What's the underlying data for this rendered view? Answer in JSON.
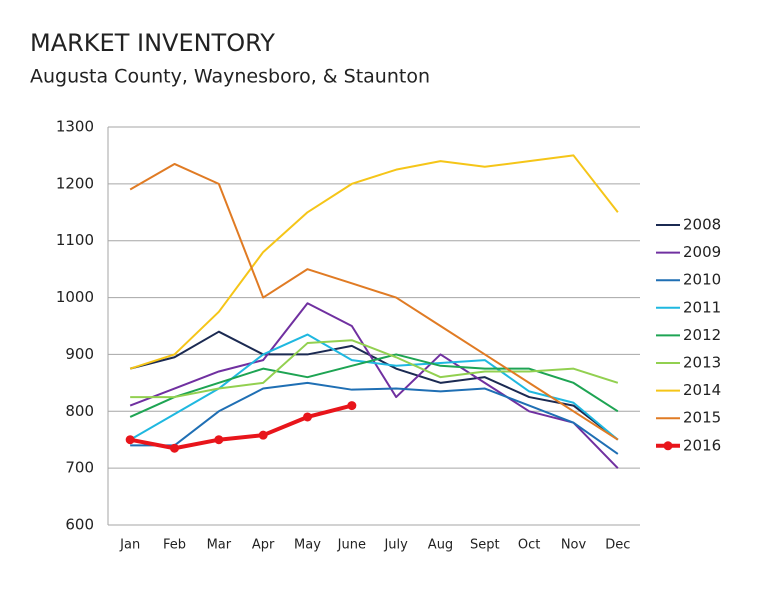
{
  "chart_data": {
    "type": "line",
    "title": "MARKET INVENTORY",
    "subtitle": "Augusta County, Waynesboro, & Staunton",
    "categories": [
      "Jan",
      "Feb",
      "Mar",
      "Apr",
      "May",
      "June",
      "July",
      "Aug",
      "Sept",
      "Oct",
      "Nov",
      "Dec"
    ],
    "series": [
      {
        "name": "2008",
        "color": "#1b2a52",
        "values": [
          875,
          895,
          940,
          900,
          900,
          915,
          875,
          850,
          860,
          825,
          810,
          750
        ]
      },
      {
        "name": "2009",
        "color": "#7030a0",
        "values": [
          810,
          840,
          870,
          890,
          990,
          950,
          825,
          900,
          850,
          800,
          780,
          700
        ]
      },
      {
        "name": "2010",
        "color": "#1f6fb4",
        "values": [
          740,
          740,
          800,
          840,
          850,
          838,
          840,
          835,
          840,
          810,
          780,
          725
        ]
      },
      {
        "name": "2011",
        "color": "#1fb8e0",
        "values": [
          750,
          795,
          840,
          900,
          935,
          890,
          880,
          885,
          890,
          835,
          815,
          750
        ]
      },
      {
        "name": "2012",
        "color": "#1ea453",
        "values": [
          790,
          825,
          850,
          875,
          860,
          880,
          900,
          880,
          875,
          875,
          850,
          800
        ]
      },
      {
        "name": "2013",
        "color": "#92d050",
        "values": [
          825,
          825,
          840,
          850,
          920,
          925,
          895,
          860,
          870,
          870,
          875,
          850
        ]
      },
      {
        "name": "2014",
        "color": "#f5c518",
        "values": [
          875,
          900,
          975,
          1080,
          1150,
          1200,
          1225,
          1240,
          1230,
          1240,
          1250,
          1150
        ]
      },
      {
        "name": "2015",
        "color": "#e07b24",
        "values": [
          1190,
          1235,
          1200,
          1000,
          1050,
          1025,
          1000,
          950,
          900,
          850,
          800,
          750
        ]
      },
      {
        "name": "2016",
        "color": "#e8151b",
        "marker": true,
        "values": [
          750,
          735,
          750,
          758,
          790,
          810,
          null,
          null,
          null,
          null,
          null,
          null
        ]
      }
    ],
    "ylim": [
      600,
      1300
    ],
    "yticks": [
      600,
      700,
      800,
      900,
      1000,
      1100,
      1200,
      1300
    ],
    "grid": true,
    "legend": "right"
  }
}
